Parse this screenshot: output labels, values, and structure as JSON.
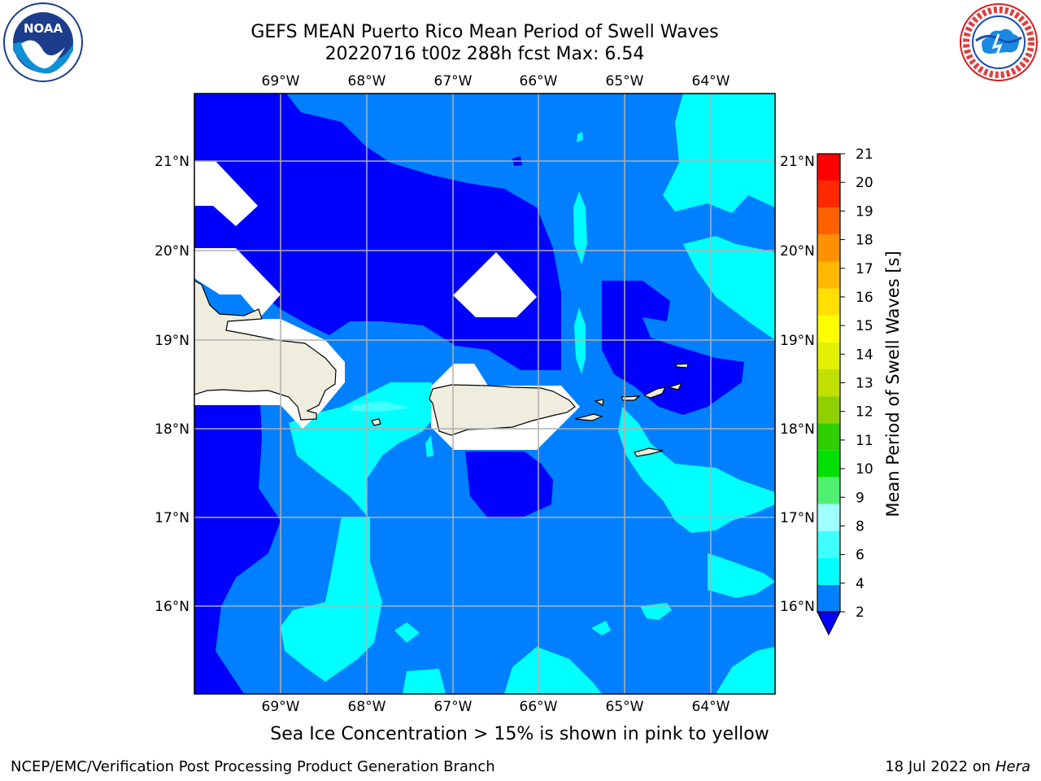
{
  "header": {
    "title_line1": "GEFS MEAN Puerto Rico Mean Period of Swell Waves",
    "title_line2": "20220716 t00z 288h fcst   Max: 6.54"
  },
  "logos": {
    "left": {
      "name": "noaa-logo",
      "text": "NOAA"
    },
    "right": {
      "name": "nws-logo",
      "text": "NATIONAL WEATHER SERVICE"
    }
  },
  "map": {
    "lon_ticks": [
      "69°W",
      "68°W",
      "67°W",
      "66°W",
      "65°W",
      "64°W"
    ],
    "lat_ticks": [
      "21°N",
      "20°N",
      "19°N",
      "18°N",
      "17°N",
      "16°N"
    ],
    "colors": {
      "dark_blue": "#0000ff",
      "mid_blue": "#0080ff",
      "cyan": "#00ffff",
      "land": "#efedde",
      "masked": "#ffffff",
      "grid": "#b0b0b0"
    }
  },
  "colorbar": {
    "title": "Mean Period of Swell Waves [s]",
    "levels": [
      "2",
      "4",
      "6",
      "8",
      "9",
      "10",
      "11",
      "12",
      "13",
      "14",
      "15",
      "16",
      "17",
      "18",
      "19",
      "20",
      "21"
    ],
    "colors": [
      "#0080ff",
      "#00ffff",
      "#40ffff",
      "#a0ffff",
      "#50f070",
      "#00e000",
      "#30d000",
      "#90d000",
      "#c0e000",
      "#e0f000",
      "#ffff00",
      "#ffe000",
      "#ffb800",
      "#ff9000",
      "#ff6000",
      "#ff2800",
      "#ff0000"
    ],
    "under_color": "#0000ff"
  },
  "footer": {
    "left": "NCEP/EMC/Verification Post Processing Product Generation Branch",
    "right_date": "18 Jul 2022 on ",
    "right_host": "Hera",
    "note": "Sea Ice Concentration > 15% is shown in pink to yellow"
  }
}
